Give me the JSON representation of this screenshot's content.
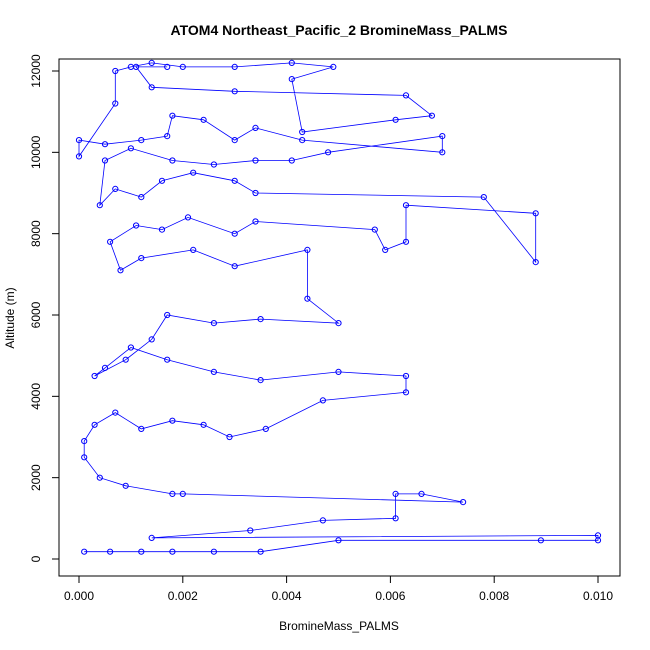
{
  "chart_data": {
    "type": "scatter",
    "title": "ATOM4 Northeast_Pacific_2 BromineMass_PALMS",
    "xlabel": "BromineMass_PALMS",
    "ylabel": "Altitude (m)",
    "xlim": [
      0.0,
      0.01
    ],
    "ylim": [
      0,
      12200
    ],
    "x_ticks": [
      "0.000",
      "0.002",
      "0.004",
      "0.006",
      "0.008",
      "0.010"
    ],
    "y_ticks": [
      "0",
      "2000",
      "4000",
      "6000",
      "8000",
      "10000",
      "12000"
    ],
    "grid": false,
    "legend": "none",
    "point_style": "open-circle",
    "line_style": "connected",
    "color": "#0000ff",
    "series": [
      {
        "values": [
          {
            "x": 0.0001,
            "y": 180
          },
          {
            "x": 0.0006,
            "y": 180
          },
          {
            "x": 0.0012,
            "y": 180
          },
          {
            "x": 0.0018,
            "y": 180
          },
          {
            "x": 0.0026,
            "y": 180
          },
          {
            "x": 0.0035,
            "y": 180
          },
          {
            "x": 0.005,
            "y": 460
          },
          {
            "x": 0.0089,
            "y": 460
          },
          {
            "x": 0.01,
            "y": 460
          },
          {
            "x": 0.01,
            "y": 580
          },
          {
            "x": 0.0014,
            "y": 520
          },
          {
            "x": 0.0033,
            "y": 700
          },
          {
            "x": 0.0047,
            "y": 950
          },
          {
            "x": 0.0061,
            "y": 1000
          },
          {
            "x": 0.0061,
            "y": 1600
          },
          {
            "x": 0.0066,
            "y": 1600
          },
          {
            "x": 0.0074,
            "y": 1400
          },
          {
            "x": 0.002,
            "y": 1600
          },
          {
            "x": 0.0018,
            "y": 1600
          },
          {
            "x": 0.0009,
            "y": 1800
          },
          {
            "x": 0.0004,
            "y": 2000
          },
          {
            "x": 0.0001,
            "y": 2500
          },
          {
            "x": 0.0001,
            "y": 2900
          },
          {
            "x": 0.0003,
            "y": 3300
          },
          {
            "x": 0.0007,
            "y": 3600
          },
          {
            "x": 0.0012,
            "y": 3200
          },
          {
            "x": 0.0018,
            "y": 3400
          },
          {
            "x": 0.0024,
            "y": 3300
          },
          {
            "x": 0.0029,
            "y": 3000
          },
          {
            "x": 0.0036,
            "y": 3200
          },
          {
            "x": 0.0047,
            "y": 3900
          },
          {
            "x": 0.0063,
            "y": 4100
          },
          {
            "x": 0.0063,
            "y": 4500
          },
          {
            "x": 0.005,
            "y": 4600
          },
          {
            "x": 0.0035,
            "y": 4400
          },
          {
            "x": 0.0026,
            "y": 4600
          },
          {
            "x": 0.0017,
            "y": 4900
          },
          {
            "x": 0.001,
            "y": 5200
          },
          {
            "x": 0.0005,
            "y": 4700
          },
          {
            "x": 0.0003,
            "y": 4500
          },
          {
            "x": 0.0009,
            "y": 4900
          },
          {
            "x": 0.0014,
            "y": 5400
          },
          {
            "x": 0.0017,
            "y": 6000
          },
          {
            "x": 0.0026,
            "y": 5800
          },
          {
            "x": 0.0035,
            "y": 5900
          },
          {
            "x": 0.005,
            "y": 5800
          },
          {
            "x": 0.0044,
            "y": 6400
          },
          {
            "x": 0.0044,
            "y": 7600
          },
          {
            "x": 0.003,
            "y": 7200
          },
          {
            "x": 0.0022,
            "y": 7600
          },
          {
            "x": 0.0012,
            "y": 7400
          },
          {
            "x": 0.0008,
            "y": 7100
          },
          {
            "x": 0.0006,
            "y": 7800
          },
          {
            "x": 0.0011,
            "y": 8200
          },
          {
            "x": 0.0016,
            "y": 8100
          },
          {
            "x": 0.0021,
            "y": 8400
          },
          {
            "x": 0.003,
            "y": 8000
          },
          {
            "x": 0.0034,
            "y": 8300
          },
          {
            "x": 0.0057,
            "y": 8100
          },
          {
            "x": 0.0059,
            "y": 7600
          },
          {
            "x": 0.0063,
            "y": 7800
          },
          {
            "x": 0.0063,
            "y": 8700
          },
          {
            "x": 0.0088,
            "y": 8500
          },
          {
            "x": 0.0088,
            "y": 7300
          },
          {
            "x": 0.0078,
            "y": 8900
          },
          {
            "x": 0.0034,
            "y": 9000
          },
          {
            "x": 0.003,
            "y": 9300
          },
          {
            "x": 0.0022,
            "y": 9500
          },
          {
            "x": 0.0016,
            "y": 9300
          },
          {
            "x": 0.0012,
            "y": 8900
          },
          {
            "x": 0.0007,
            "y": 9100
          },
          {
            "x": 0.0004,
            "y": 8700
          },
          {
            "x": 0.0005,
            "y": 9800
          },
          {
            "x": 0.001,
            "y": 10100
          },
          {
            "x": 0.0018,
            "y": 9800
          },
          {
            "x": 0.0026,
            "y": 9700
          },
          {
            "x": 0.0034,
            "y": 9800
          },
          {
            "x": 0.0041,
            "y": 9800
          },
          {
            "x": 0.0048,
            "y": 10000
          },
          {
            "x": 0.007,
            "y": 10400
          },
          {
            "x": 0.007,
            "y": 10000
          },
          {
            "x": 0.0043,
            "y": 10300
          },
          {
            "x": 0.0034,
            "y": 10600
          },
          {
            "x": 0.003,
            "y": 10300
          },
          {
            "x": 0.0024,
            "y": 10800
          },
          {
            "x": 0.0018,
            "y": 10900
          },
          {
            "x": 0.0017,
            "y": 10400
          },
          {
            "x": 0.0012,
            "y": 10300
          },
          {
            "x": 0.0005,
            "y": 10200
          },
          {
            "x": 0.0,
            "y": 10300
          },
          {
            "x": 0.0,
            "y": 9900
          },
          {
            "x": 0.0007,
            "y": 11200
          },
          {
            "x": 0.0007,
            "y": 12000
          },
          {
            "x": 0.001,
            "y": 12100
          },
          {
            "x": 0.0014,
            "y": 12200
          },
          {
            "x": 0.002,
            "y": 12100
          },
          {
            "x": 0.003,
            "y": 12100
          },
          {
            "x": 0.0041,
            "y": 12200
          },
          {
            "x": 0.0049,
            "y": 12100
          },
          {
            "x": 0.0041,
            "y": 11800
          },
          {
            "x": 0.0043,
            "y": 10500
          },
          {
            "x": 0.0061,
            "y": 10800
          },
          {
            "x": 0.0068,
            "y": 10900
          },
          {
            "x": 0.0063,
            "y": 11400
          },
          {
            "x": 0.003,
            "y": 11500
          },
          {
            "x": 0.0014,
            "y": 11600
          },
          {
            "x": 0.0011,
            "y": 12100
          },
          {
            "x": 0.0017,
            "y": 12100
          }
        ]
      }
    ]
  }
}
